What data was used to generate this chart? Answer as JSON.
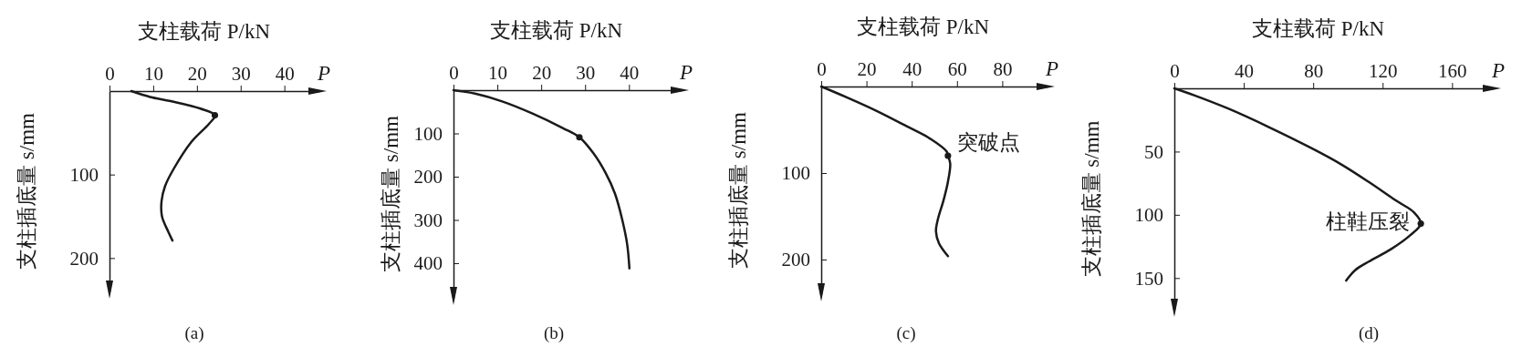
{
  "chart_data": [
    {
      "type": "line",
      "xlabel": "支柱载荷 P/kN",
      "ylabel": "支柱插底量 s/mm",
      "xlim": [
        0,
        48
      ],
      "xticks": [
        0,
        10,
        20,
        30,
        40
      ],
      "ylim": [
        240,
        0
      ],
      "yticks": [
        100,
        200
      ],
      "annotations": [
        "P",
        "(a)"
      ],
      "series": [
        {
          "color": "#1a1a1a",
          "marker": "none",
          "x": [
            5,
            9.3,
            14,
            20.8,
            24.1,
            22.8,
            18.7,
            14.7,
            12.7,
            11.9,
            12,
            13.4,
            14.4
          ],
          "values": [
            0,
            7,
            12,
            21,
            29,
            39,
            61,
            93,
            114,
            132,
            150,
            168,
            179
          ]
        },
        {
          "type": "scatter",
          "color": "#1a1a1a",
          "marker": "circle",
          "x": [
            24.1
          ],
          "values": [
            29
          ]
        }
      ]
    },
    {
      "type": "line",
      "xlabel": "支柱载荷 P/kN",
      "ylabel": "支柱插底量 s/mm",
      "xlim": [
        0,
        52
      ],
      "xticks": [
        0,
        10,
        20,
        30,
        40
      ],
      "ylim": [
        480,
        0
      ],
      "yticks": [
        100,
        200,
        300,
        400
      ],
      "annotations": [
        "P",
        "(b)"
      ],
      "series": [
        {
          "color": "#1a1a1a",
          "marker": "none",
          "x": [
            0,
            4.9,
            11.1,
            18,
            25,
            28.7,
            31.9,
            34.7,
            36.8,
            38.5,
            39.6,
            40.1
          ],
          "values": [
            0,
            8,
            26,
            54,
            88,
            109,
            146,
            192,
            239,
            301,
            357,
            412
          ]
        },
        {
          "type": "scatter",
          "color": "#1a1a1a",
          "marker": "circle",
          "x": [
            28.7
          ],
          "values": [
            109
          ]
        }
      ]
    },
    {
      "type": "line",
      "xlabel": "支柱载荷 P/kN",
      "ylabel": "支柱插底量 s/mm",
      "xlim": [
        0,
        100
      ],
      "xticks": [
        0,
        20,
        40,
        60,
        80
      ],
      "ylim": [
        240,
        0
      ],
      "yticks": [
        100,
        200
      ],
      "annotations": [
        "P",
        "(c)",
        {
          "text": "突破点",
          "x": 56,
          "y": 80
        }
      ],
      "series": [
        {
          "color": "#1a1a1a",
          "marker": "none",
          "x": [
            0,
            10.8,
            24.3,
            37.8,
            48.6,
            55.4,
            56,
            57,
            56,
            54,
            51.6,
            50.7,
            52,
            56
          ],
          "values": [
            0,
            12,
            28,
            46,
            61,
            75,
            80,
            89,
            110,
            132,
            153,
            167,
            181,
            196
          ]
        },
        {
          "type": "scatter",
          "color": "#1a1a1a",
          "marker": "circle",
          "x": [
            56
          ],
          "values": [
            80
          ]
        }
      ]
    },
    {
      "type": "line",
      "xlabel": "支柱载荷 P/kN",
      "ylabel": "支柱插底量 s/mm",
      "xlim": [
        0,
        184
      ],
      "xticks": [
        0,
        40,
        80,
        120,
        160
      ],
      "ylim": [
        175,
        0
      ],
      "yticks": [
        50,
        100,
        150
      ],
      "annotations": [
        "P",
        "(d)",
        {
          "text": "柱鞋压裂",
          "x": 142,
          "y": 107
        }
      ],
      "series": [
        {
          "color": "#1a1a1a",
          "marker": "none",
          "x": [
            0,
            11.4,
            31,
            55,
            80,
            96,
            112,
            128,
            138,
            142,
            136,
            125,
            112,
            104,
            99
          ],
          "values": [
            0,
            5.5,
            16,
            31,
            48,
            60,
            74,
            89,
            98,
            107,
            116,
            127,
            137,
            144,
            152
          ]
        },
        {
          "type": "scatter",
          "color": "#1a1a1a",
          "marker": "circle",
          "x": [
            142
          ],
          "values": [
            107
          ]
        }
      ]
    }
  ]
}
